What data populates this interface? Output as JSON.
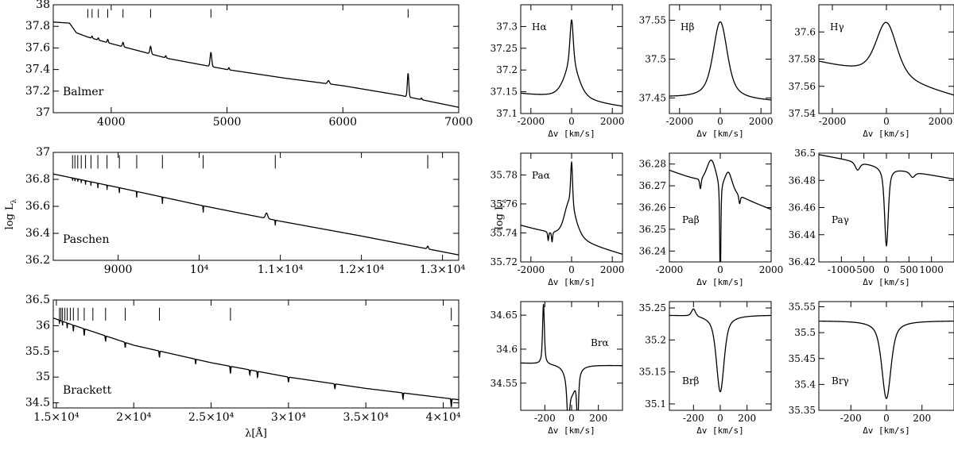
{
  "ylabel_left": "log L",
  "ylabel_left_sub": "λ",
  "ylabel_mid": "log L",
  "ylabel_mid_sub": "λ",
  "chart_data": [
    {
      "id": "balmer",
      "type": "line",
      "label": "Balmer",
      "xlim": [
        3500,
        7000
      ],
      "ylim": [
        37,
        38
      ],
      "xticks": [
        4000,
        5000,
        6000,
        7000
      ],
      "xticklabels": [
        "4000",
        "5000",
        "6000",
        "7000"
      ],
      "yticks": [
        37,
        37.2,
        37.4,
        37.6,
        37.8,
        38
      ],
      "yticklabels": [
        "37",
        "37.2",
        "37.4",
        "37.6",
        "37.8",
        "38"
      ],
      "xlabel": "",
      "continuum": [
        [
          3500,
          37.84
        ],
        [
          3640,
          37.83
        ],
        [
          3700,
          37.74
        ],
        [
          3800,
          37.7
        ],
        [
          4000,
          37.64
        ],
        [
          4500,
          37.5
        ],
        [
          5000,
          37.4
        ],
        [
          5500,
          37.32
        ],
        [
          6000,
          37.25
        ],
        [
          6500,
          37.16
        ],
        [
          7000,
          37.05
        ]
      ],
      "lines": [
        [
          3835,
          0.02,
          6
        ],
        [
          3889,
          0.02,
          6
        ],
        [
          3970,
          0.03,
          7
        ],
        [
          4102,
          0.04,
          8
        ],
        [
          4340,
          0.07,
          9
        ],
        [
          4471,
          0.02,
          6
        ],
        [
          4861,
          0.13,
          10
        ],
        [
          5016,
          0.02,
          6
        ],
        [
          5876,
          0.03,
          12
        ],
        [
          6563,
          0.22,
          9
        ],
        [
          6678,
          0.015,
          6
        ]
      ],
      "marks": [
        3798,
        3835,
        3889,
        3970,
        4102,
        4340,
        4861,
        6563
      ],
      "marks_range": [
        37.88,
        37.96
      ]
    },
    {
      "id": "paschen",
      "type": "line",
      "label": "Paschen",
      "xlim": [
        8200,
        13200
      ],
      "ylim": [
        36.2,
        37
      ],
      "xticks": [
        9000,
        10000,
        11000,
        12000,
        13000
      ],
      "xticklabels": [
        "9000",
        "10⁴",
        "1.1×10⁴",
        "1.2×10⁴",
        "1.3×10⁴"
      ],
      "yticks": [
        36.2,
        36.4,
        36.6,
        36.8,
        37
      ],
      "yticklabels": [
        "36.2",
        "36.4",
        "36.6",
        "36.8",
        "37"
      ],
      "xlabel": "",
      "continuum": [
        [
          8200,
          36.84
        ],
        [
          9000,
          36.74
        ],
        [
          10000,
          36.61
        ],
        [
          11000,
          36.49
        ],
        [
          12000,
          36.38
        ],
        [
          13200,
          36.24
        ]
      ],
      "lines": [
        [
          8438,
          -0.02,
          2
        ],
        [
          8467,
          -0.02,
          2
        ],
        [
          8502,
          -0.02,
          2
        ],
        [
          8545,
          -0.025,
          2
        ],
        [
          8598,
          -0.03,
          2
        ],
        [
          8665,
          -0.03,
          2
        ],
        [
          8750,
          -0.035,
          2
        ],
        [
          8863,
          -0.035,
          2
        ],
        [
          9015,
          -0.04,
          2
        ],
        [
          9229,
          -0.045,
          2
        ],
        [
          9546,
          -0.05,
          3
        ],
        [
          10049,
          -0.05,
          3
        ],
        [
          10830,
          0.04,
          20
        ],
        [
          10938,
          -0.04,
          3
        ],
        [
          12818,
          0.02,
          12
        ]
      ],
      "marks": [
        8438,
        8467,
        8502,
        8545,
        8598,
        8665,
        8750,
        8863,
        9015,
        9229,
        9546,
        10049,
        10938,
        12818
      ],
      "marks_range": [
        36.88,
        36.98
      ]
    },
    {
      "id": "brackett",
      "type": "line",
      "label": "Brackett",
      "xlim": [
        14800,
        41000
      ],
      "ylim": [
        34.4,
        36.5
      ],
      "xticks": [
        15000,
        20000,
        25000,
        30000,
        35000,
        40000
      ],
      "xticklabels": [
        "1.5×10⁴",
        "2×10⁴",
        "2.5×10⁴",
        "3×10⁴",
        "3.5×10⁴",
        "4×10⁴"
      ],
      "yticks": [
        34.5,
        35,
        35.5,
        36,
        36.5
      ],
      "yticklabels": [
        "34.5",
        "35",
        "35.5",
        "36",
        "36.5"
      ],
      "xlabel": "λ[Å]",
      "continuum": [
        [
          14800,
          36.15
        ],
        [
          16000,
          36.02
        ],
        [
          20000,
          35.62
        ],
        [
          25000,
          35.28
        ],
        [
          30000,
          35.0
        ],
        [
          35000,
          34.78
        ],
        [
          41000,
          34.56
        ]
      ],
      "lines": [
        [
          15200,
          -0.06,
          15
        ],
        [
          15400,
          -0.08,
          15
        ],
        [
          15700,
          -0.1,
          15
        ],
        [
          16100,
          -0.12,
          20
        ],
        [
          16800,
          -0.13,
          25
        ],
        [
          18180,
          -0.1,
          30
        ],
        [
          19450,
          -0.1,
          30
        ],
        [
          21660,
          -0.12,
          30
        ],
        [
          24000,
          -0.1,
          20
        ],
        [
          26250,
          -0.14,
          30
        ],
        [
          27500,
          -0.1,
          30
        ],
        [
          28000,
          -0.12,
          30
        ],
        [
          30000,
          -0.1,
          30
        ],
        [
          33000,
          -0.1,
          30
        ],
        [
          37400,
          -0.12,
          30
        ],
        [
          40520,
          -0.16,
          30
        ]
      ],
      "marks": [
        15200,
        15300,
        15400,
        15550,
        15700,
        15900,
        16100,
        16400,
        16800,
        17360,
        18180,
        19450,
        21660,
        26250,
        40520
      ],
      "marks_range": [
        36.1,
        36.35
      ]
    },
    {
      "id": "ha",
      "type": "line",
      "label": "Hα",
      "xlim": [
        -2500,
        2500
      ],
      "ylim": [
        37.1,
        37.35
      ],
      "xticks": [
        -2000,
        0,
        2000
      ],
      "xticklabels": [
        "-2000",
        "0",
        "2000"
      ],
      "yticks": [
        37.1,
        37.15,
        37.2,
        37.25,
        37.3
      ],
      "yticklabels": [
        "37.1",
        "37.15",
        "37.2",
        "37.25",
        "37.3"
      ],
      "xlabel": "Δv [km/s]",
      "profile": {
        "base": 37.13,
        "slope": -6e-06,
        "components": [
          [
            0,
            0.11,
            110
          ],
          [
            0,
            0.075,
            500
          ]
        ]
      }
    },
    {
      "id": "hb",
      "type": "line",
      "label": "Hβ",
      "xlim": [
        -2500,
        2500
      ],
      "ylim": [
        37.43,
        37.57
      ],
      "xticks": [
        -2000,
        0,
        2000
      ],
      "xticklabels": [
        "-2000",
        "0",
        "2000"
      ],
      "yticks": [
        37.45,
        37.5,
        37.55
      ],
      "yticklabels": [
        "37.45",
        "37.5",
        "37.55"
      ],
      "xlabel": "Δv [km/s]",
      "profile": {
        "base": 37.448,
        "slope": -1e-06,
        "components": [
          [
            0,
            0.1,
            460
          ]
        ]
      }
    },
    {
      "id": "hg",
      "type": "line",
      "label": "Hγ",
      "xlim": [
        -2500,
        2500
      ],
      "ylim": [
        37.54,
        37.62
      ],
      "xticks": [
        -2000,
        0,
        2000
      ],
      "xticklabels": [
        "-2000",
        "0",
        "2000"
      ],
      "yticks": [
        37.54,
        37.56,
        37.58,
        37.6
      ],
      "yticklabels": [
        "37.54",
        "37.56",
        "37.58",
        "37.6"
      ],
      "xlabel": "Δv [km/s]",
      "profile": {
        "base": 37.565,
        "slope": -5e-06,
        "components": [
          [
            0,
            0.042,
            520
          ]
        ]
      }
    },
    {
      "id": "paa",
      "type": "line",
      "label": "Paα",
      "xlim": [
        -2500,
        2500
      ],
      "ylim": [
        35.72,
        35.795
      ],
      "xticks": [
        -2000,
        0,
        2000
      ],
      "xticklabels": [
        "-2000",
        "0",
        "2000"
      ],
      "yticks": [
        35.72,
        35.74,
        35.76,
        35.78
      ],
      "yticklabels": [
        "35.72",
        "35.74",
        "35.76",
        "35.78"
      ],
      "xlabel": "Δv [km/s]",
      "profile": {
        "base": 35.735,
        "slope": -4e-06,
        "components": [
          [
            0,
            0.032,
            65
          ],
          [
            0,
            0.016,
            400
          ],
          [
            -200,
            0.01,
            250
          ],
          [
            -1150,
            -0.006,
            35
          ],
          [
            -960,
            -0.007,
            35
          ]
        ]
      }
    },
    {
      "id": "pab",
      "type": "line",
      "label": "Paβ",
      "xlim": [
        -2000,
        2000
      ],
      "ylim": [
        36.235,
        36.285
      ],
      "xticks": [
        -2000,
        0,
        2000
      ],
      "xticklabels": [
        "-2000",
        "0",
        "2000"
      ],
      "yticks": [
        36.24,
        36.25,
        36.26,
        36.27,
        36.28
      ],
      "yticklabels": [
        "36.24",
        "36.25",
        "36.26",
        "36.27",
        "36.28"
      ],
      "xlabel": "Δv [km/s]",
      "profile": {
        "base": 36.268,
        "slope": -4.5e-06,
        "components": [
          [
            0,
            -0.05,
            28
          ],
          [
            -350,
            0.012,
            250
          ],
          [
            320,
            0.009,
            200
          ],
          [
            -780,
            -0.005,
            40
          ],
          [
            760,
            -0.004,
            40
          ]
        ]
      }
    },
    {
      "id": "pag",
      "type": "line",
      "label": "Paγ",
      "xlim": [
        -1500,
        1500
      ],
      "ylim": [
        36.42,
        36.5
      ],
      "xticks": [
        -1000,
        -500,
        0,
        500,
        1000
      ],
      "xticklabels": [
        "-1000",
        "-500",
        "0",
        "500",
        "1000"
      ],
      "yticks": [
        36.42,
        36.44,
        36.46,
        36.48,
        36.5
      ],
      "yticklabels": [
        "36.42",
        "36.44",
        "36.46",
        "36.48",
        "36.5"
      ],
      "xlabel": "Δv [km/s]",
      "profile": {
        "base": 36.49,
        "slope": -6e-06,
        "components": [
          [
            0,
            -0.058,
            55
          ],
          [
            -640,
            -0.006,
            70
          ],
          [
            580,
            -0.004,
            70
          ]
        ]
      }
    },
    {
      "id": "bra",
      "type": "line",
      "label": "Brα",
      "xlim": [
        -380,
        380
      ],
      "ylim": [
        34.51,
        34.67
      ],
      "xticks": [
        -200,
        0,
        200
      ],
      "xticklabels": [
        "-200",
        "0",
        "200"
      ],
      "yticks": [
        34.55,
        34.6,
        34.65
      ],
      "yticklabels": [
        "34.55",
        "34.6",
        "34.65"
      ],
      "xlabel": "Δv [km/s]",
      "profile": {
        "base": 34.578,
        "slope": -5e-06,
        "components": [
          [
            -210,
            0.088,
            9
          ],
          [
            -25,
            -0.06,
            12
          ],
          [
            45,
            -0.068,
            9
          ],
          [
            0,
            -0.04,
            45
          ]
        ]
      }
    },
    {
      "id": "brb",
      "type": "line",
      "label": "Brβ",
      "xlim": [
        -380,
        380
      ],
      "ylim": [
        35.09,
        35.26
      ],
      "xticks": [
        -200,
        0,
        200
      ],
      "xticklabels": [
        "-200",
        "0",
        "200"
      ],
      "yticks": [
        35.1,
        35.15,
        35.2,
        35.25
      ],
      "yticklabels": [
        "35.1",
        "35.15",
        "35.2",
        "35.25"
      ],
      "xlabel": "Δv [km/s]",
      "profile": {
        "base": 35.239,
        "slope": 0.0,
        "components": [
          [
            0,
            -0.12,
            38
          ],
          [
            -200,
            0.012,
            20
          ]
        ]
      }
    },
    {
      "id": "brg",
      "type": "line",
      "label": "Brγ",
      "xlim": [
        -380,
        380
      ],
      "ylim": [
        35.35,
        35.56
      ],
      "xticks": [
        -200,
        0,
        200
      ],
      "xticklabels": [
        "-200",
        "0",
        "200"
      ],
      "yticks": [
        35.35,
        35.4,
        35.45,
        35.5,
        35.55
      ],
      "yticklabels": [
        "35.35",
        "35.4",
        "35.45",
        "35.5",
        "35.55"
      ],
      "xlabel": "Δv [km/s]",
      "profile": {
        "base": 35.523,
        "slope": 0.0,
        "components": [
          [
            0,
            -0.15,
            34
          ]
        ]
      }
    }
  ]
}
